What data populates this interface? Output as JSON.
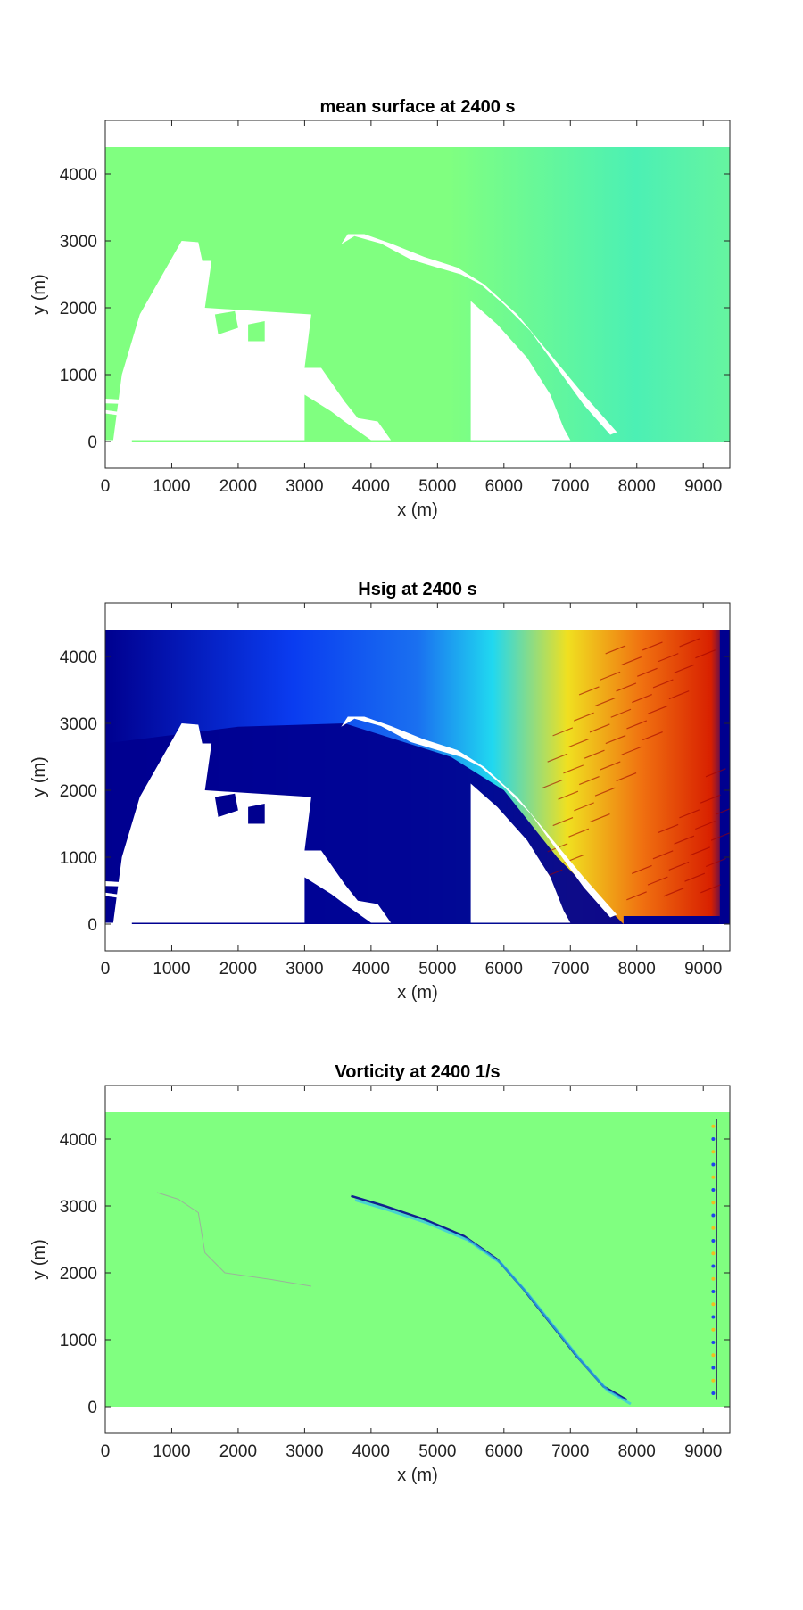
{
  "colors": {
    "surface_green": "#80ff80",
    "surface_teal": "#4cf0b4",
    "hsig_navy": "#00008f",
    "hsig_blue": "#0a3cf0",
    "hsig_cyan": "#20d8f0",
    "hsig_yellow": "#f0e020",
    "hsig_red": "#d82000",
    "vort_green": "#80ff80",
    "land_white": "#ffffff",
    "axes_frame": "#262626"
  },
  "chart_data": [
    {
      "type": "heatmap",
      "title": "mean surface at 2400 s",
      "xlabel": "x (m)",
      "ylabel": "y (m)",
      "xlim": [
        0,
        9400
      ],
      "ylim": [
        -400,
        4800
      ],
      "xticks": [
        0,
        1000,
        2000,
        3000,
        4000,
        5000,
        6000,
        7000,
        8000,
        9000
      ],
      "yticks": [
        0,
        1000,
        2000,
        3000,
        4000
      ],
      "field": "mean water surface elevation",
      "colormap": "jet",
      "colorbar": false,
      "grid": false
    },
    {
      "type": "heatmap",
      "title": "Hsig at 2400 s",
      "xlabel": "x (m)",
      "ylabel": "y (m)",
      "xlim": [
        0,
        9400
      ],
      "ylim": [
        -400,
        4800
      ],
      "xticks": [
        0,
        1000,
        2000,
        3000,
        4000,
        5000,
        6000,
        7000,
        8000,
        9000
      ],
      "yticks": [
        0,
        1000,
        2000,
        3000,
        4000
      ],
      "field": "significant wave height",
      "colormap": "jet",
      "colorbar": false,
      "grid": false
    },
    {
      "type": "heatmap",
      "title": "Vorticity at 2400 1/s",
      "xlabel": "x (m)",
      "ylabel": "y (m)",
      "xlim": [
        0,
        9400
      ],
      "ylim": [
        -400,
        4800
      ],
      "xticks": [
        0,
        1000,
        2000,
        3000,
        4000,
        5000,
        6000,
        7000,
        8000,
        9000
      ],
      "yticks": [
        0,
        1000,
        2000,
        3000,
        4000
      ],
      "field": "vorticity",
      "colormap": "jet",
      "colorbar": false,
      "grid": false
    }
  ]
}
